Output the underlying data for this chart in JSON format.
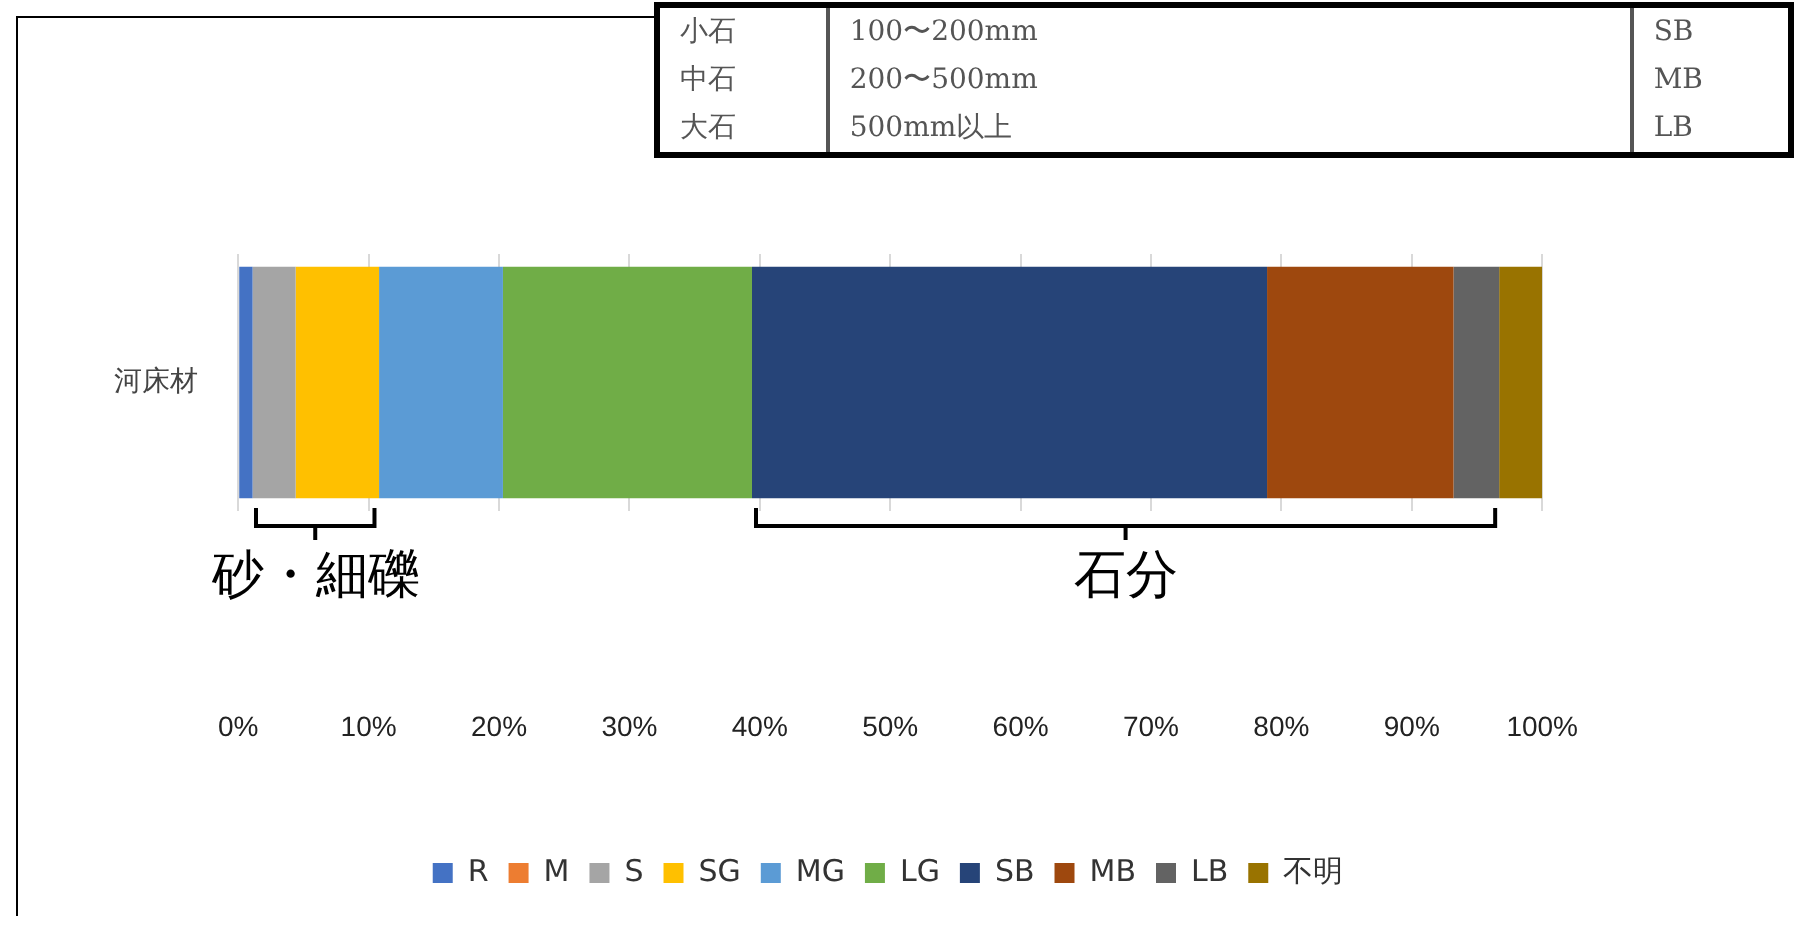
{
  "chart_data": {
    "type": "bar",
    "orientation": "horizontal",
    "stacked": true,
    "categories": [
      "河床材"
    ],
    "series": [
      {
        "name": "R",
        "color": "#4472c4",
        "values": [
          1.1
        ]
      },
      {
        "name": "M",
        "color": "#ed7d31",
        "values": [
          0
        ]
      },
      {
        "name": "S",
        "color": "#a5a5a5",
        "values": [
          3.3
        ]
      },
      {
        "name": "SG",
        "color": "#ffc000",
        "values": [
          6.4
        ]
      },
      {
        "name": "MG",
        "color": "#5b9bd5",
        "values": [
          9.5
        ]
      },
      {
        "name": "LG",
        "color": "#70ad47",
        "values": [
          19.1
        ]
      },
      {
        "name": "SB",
        "color": "#264478",
        "values": [
          39.5
        ]
      },
      {
        "name": "MB",
        "color": "#9e480e",
        "values": [
          14.3
        ]
      },
      {
        "name": "LB",
        "color": "#636363",
        "values": [
          3.5
        ]
      },
      {
        "name": "不明",
        "color": "#997300",
        "values": [
          3.3
        ]
      }
    ],
    "xlim": [
      0,
      100
    ],
    "xticks": [
      {
        "value": 0,
        "label": "0%"
      },
      {
        "value": 10,
        "label": "10%"
      },
      {
        "value": 20,
        "label": "20%"
      },
      {
        "value": 30,
        "label": "30%"
      },
      {
        "value": 40,
        "label": "40%"
      },
      {
        "value": 50,
        "label": "50%"
      },
      {
        "value": 60,
        "label": "60%"
      },
      {
        "value": 70,
        "label": "70%"
      },
      {
        "value": 80,
        "label": "80%"
      },
      {
        "value": 90,
        "label": "90%"
      },
      {
        "value": 100,
        "label": "100%"
      }
    ],
    "grid": "x",
    "legend": "bottom",
    "annotations": [
      "小石",
      "100〜200mm",
      "SB",
      "中石",
      "200〜500mm",
      "MB",
      "大石",
      "500mm以上",
      "LB",
      "砂・細礫",
      "石分"
    ]
  }
}
